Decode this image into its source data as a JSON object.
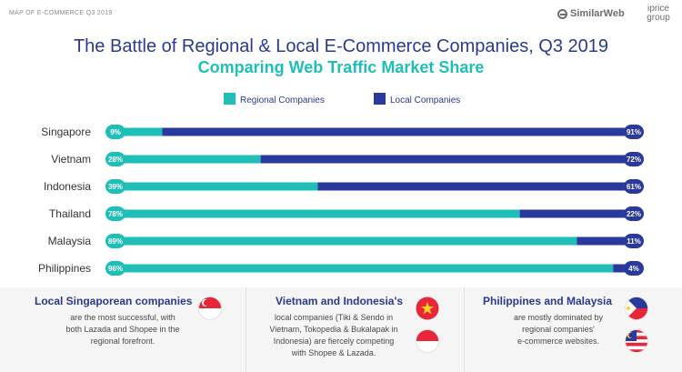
{
  "header": {
    "report_tag": "MAP OF E-COMMERCE Q3 2019",
    "logo_similarweb": "SimilarWeb",
    "logo_iprice_1": "iprice",
    "logo_iprice_2": "group"
  },
  "chart_data": {
    "type": "bar",
    "orientation": "horizontal",
    "stacked": true,
    "title": "The Battle of Regional & Local E-Commerce Companies, Q3 2019",
    "subtitle": "Comparing Web Traffic Market Share",
    "categories": [
      "Singapore",
      "Vietnam",
      "Indonesia",
      "Thailand",
      "Malaysia",
      "Philippines"
    ],
    "series": [
      {
        "name": "Regional Companies",
        "color": "#1fbfb8",
        "values": [
          9,
          28,
          39,
          78,
          89,
          96
        ]
      },
      {
        "name": "Local Companies",
        "color": "#2a3a9c",
        "values": [
          91,
          72,
          61,
          22,
          11,
          4
        ]
      }
    ],
    "value_labels_regional": [
      "9%",
      "28%",
      "39%",
      "78%",
      "89%",
      "96%"
    ],
    "value_labels_local": [
      "91%",
      "72%",
      "61%",
      "22%",
      "11%",
      "4%"
    ],
    "xlim": [
      0,
      100
    ],
    "legend_position": "top",
    "grid": false
  },
  "insights": [
    {
      "heading": "Local Singaporean companies",
      "lines": [
        "are the most successful, with",
        "both Lazada and Shopee in the",
        "regional forefront."
      ],
      "flags": [
        "singapore-flag-icon"
      ]
    },
    {
      "heading": "Vietnam and Indonesia's",
      "lines": [
        "local companies (Tiki & Sendo in",
        "Vietnam, Tokopedia & Bukalapak in",
        "Indonesia) are fiercely competing",
        "with Shopee & Lazada."
      ],
      "flags": [
        "vietnam-flag-icon",
        "indonesia-flag-icon"
      ]
    },
    {
      "heading": "Philippines and Malaysia",
      "lines": [
        "are mostly dominated by",
        "regional companies'",
        "e-commerce websites."
      ],
      "flags": [
        "philippines-flag-icon",
        "malaysia-flag-icon"
      ]
    }
  ]
}
